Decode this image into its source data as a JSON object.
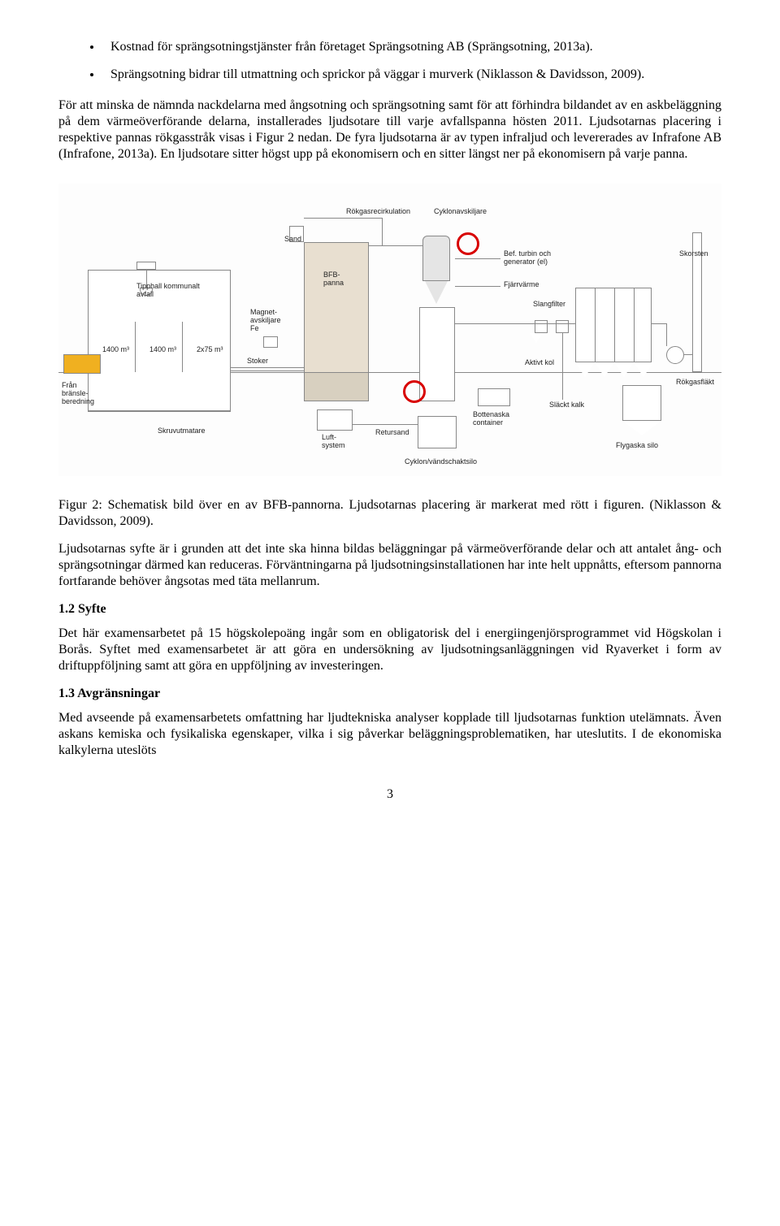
{
  "bullets": [
    "Kostnad för sprängsotningstjänster från företaget Sprängsotning AB (Sprängsotning, 2013a).",
    "Sprängsotning bidrar till utmattning och sprickor på väggar i murverk (Niklasson & Davidsson, 2009)."
  ],
  "para1": "För att minska de nämnda nackdelarna med ångsotning och sprängsotning samt för att förhindra bildandet av en askbeläggning på dem värmeöverförande delarna, installerades ljudsotare till varje avfallspanna hösten 2011. Ljudsotarnas placering i respektive pannas rökgasstråk visas i Figur 2 nedan. De fyra ljudsotarna är av typen infraljud och levererades av Infrafone AB (Infrafone, 2013a). En ljudsotare sitter högst upp på ekonomisern och en sitter längst ner på ekonomisern på varje panna.",
  "diagram": {
    "labels": {
      "rokgasrecirkulation": "Rökgasrecirkulation",
      "cyklonavskiljare": "Cyklonavskiljare",
      "sand": "Sand",
      "bfbpanna": "BFB-\\npanna",
      "bef_turbin": "Bef. turbin och\\ngenerator (el)",
      "skorsten": "Skorsten",
      "fjarrvarme": "Fjärrvärme",
      "slangfilter": "Slangfilter",
      "tipphall": "Tipphall kommunalt\\navfall",
      "fran_bransle": "Från\\nbränsle-\\nberedning",
      "magnet_fe": "Magnet-\\navskiljare\\nFe",
      "vol1": "1400 m³",
      "vol2": "1400 m³",
      "twox75": "2x75 m³",
      "stoker": "Stoker",
      "skruv": "Skruvutmatare",
      "luftsystem": "Luft-\\nsystem",
      "retursand": "Retursand",
      "cyklon_silo": "Cyklon/vändschaktsilo",
      "bottenaska": "Bottenaska\\ncontainer",
      "aktivt_kol": "Aktivt kol",
      "slackt_kalk": "Släckt kalk",
      "flygaska_silo": "Flygaska silo",
      "rokgasflakt": "Rökgasfläkt"
    },
    "colors": {
      "stroke": "#888888",
      "highlight": "#d80000",
      "dozer": "#f0b020",
      "panna_fill": "#e8dfd0",
      "cyklon_fill": "#e5e5e5"
    }
  },
  "figure_caption": "Figur 2: Schematisk bild över en av BFB-pannorna. Ljudsotarnas placering är markerat med rött i figuren. (Niklasson & Davidsson, 2009).",
  "para_after_fig": "Ljudsotarnas syfte är i grunden att det inte ska hinna bildas beläggningar på värmeöverförande delar och att antalet ång- och sprängsotningar därmed kan reduceras. Förväntningarna på ljudsotningsinstallationen har inte helt uppnåtts, eftersom pannorna fortfarande behöver ångsotas med täta mellanrum.",
  "sections": {
    "syfte": {
      "heading": "1.2  Syfte",
      "text": "Det här examensarbetet på 15 högskolepoäng ingår som en obligatorisk del i energiingenjörsprogrammet vid Högskolan i Borås. Syftet med examensarbetet är att göra en undersökning av ljudsotningsanläggningen vid Ryaverket i form av driftuppföljning samt att göra en uppföljning av investeringen."
    },
    "avgransningar": {
      "heading": "1.3  Avgränsningar",
      "text": "Med avseende på examensarbetets omfattning har ljudtekniska analyser kopplade till ljudsotarnas funktion utelämnats. Även askans kemiska och fysikaliska egenskaper, vilka i sig påverkar beläggningsproblematiken, har uteslutits. I de ekonomiska kalkylerna uteslöts"
    }
  },
  "page_number": "3"
}
